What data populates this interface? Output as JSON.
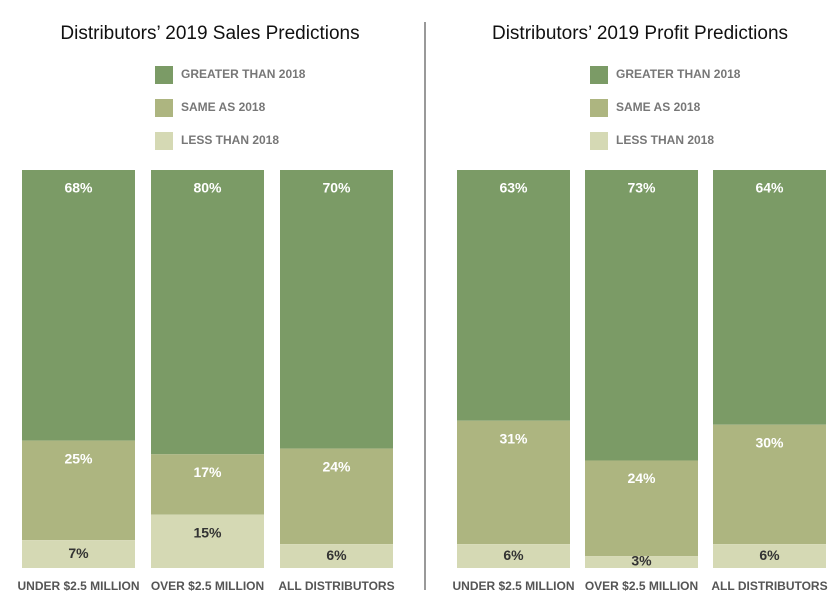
{
  "chart_data": [
    {
      "type": "bar",
      "stacked": true,
      "title": "Distributors’ 2019 Sales Predictions",
      "categories": [
        "UNDER $2.5 MILLION",
        "OVER $2.5 MILLION",
        "ALL DISTRIBUTORS"
      ],
      "series": [
        {
          "name": "GREATER THAN 2018",
          "color": "#7b9b66",
          "values": [
            68,
            80,
            70
          ],
          "value_labels": [
            "68%",
            "80%",
            "70%"
          ]
        },
        {
          "name": "SAME AS 2018",
          "color": "#adb580",
          "values": [
            25,
            17,
            24
          ],
          "value_labels": [
            "25%",
            "17%",
            "24%"
          ]
        },
        {
          "name": "LESS THAN 2018",
          "color": "#d5d9b4",
          "values": [
            7,
            15,
            6
          ],
          "value_labels": [
            "7%",
            "15%",
            "6%"
          ]
        }
      ]
    },
    {
      "type": "bar",
      "stacked": true,
      "title": "Distributors’ 2019 Profit Predictions",
      "categories": [
        "UNDER $2.5 MILLION",
        "OVER $2.5 MILLION",
        "ALL DISTRIBUTORS"
      ],
      "series": [
        {
          "name": "GREATER THAN 2018",
          "color": "#7b9b66",
          "values": [
            63,
            73,
            64
          ],
          "value_labels": [
            "63%",
            "73%",
            "64%"
          ]
        },
        {
          "name": "SAME AS 2018",
          "color": "#adb580",
          "values": [
            31,
            24,
            30
          ],
          "value_labels": [
            "31%",
            "24%",
            "30%"
          ]
        },
        {
          "name": "LESS THAN 2018",
          "color": "#d5d9b4",
          "values": [
            6,
            3,
            6
          ],
          "value_labels": [
            "6%",
            "3%",
            "6%"
          ]
        }
      ]
    }
  ]
}
